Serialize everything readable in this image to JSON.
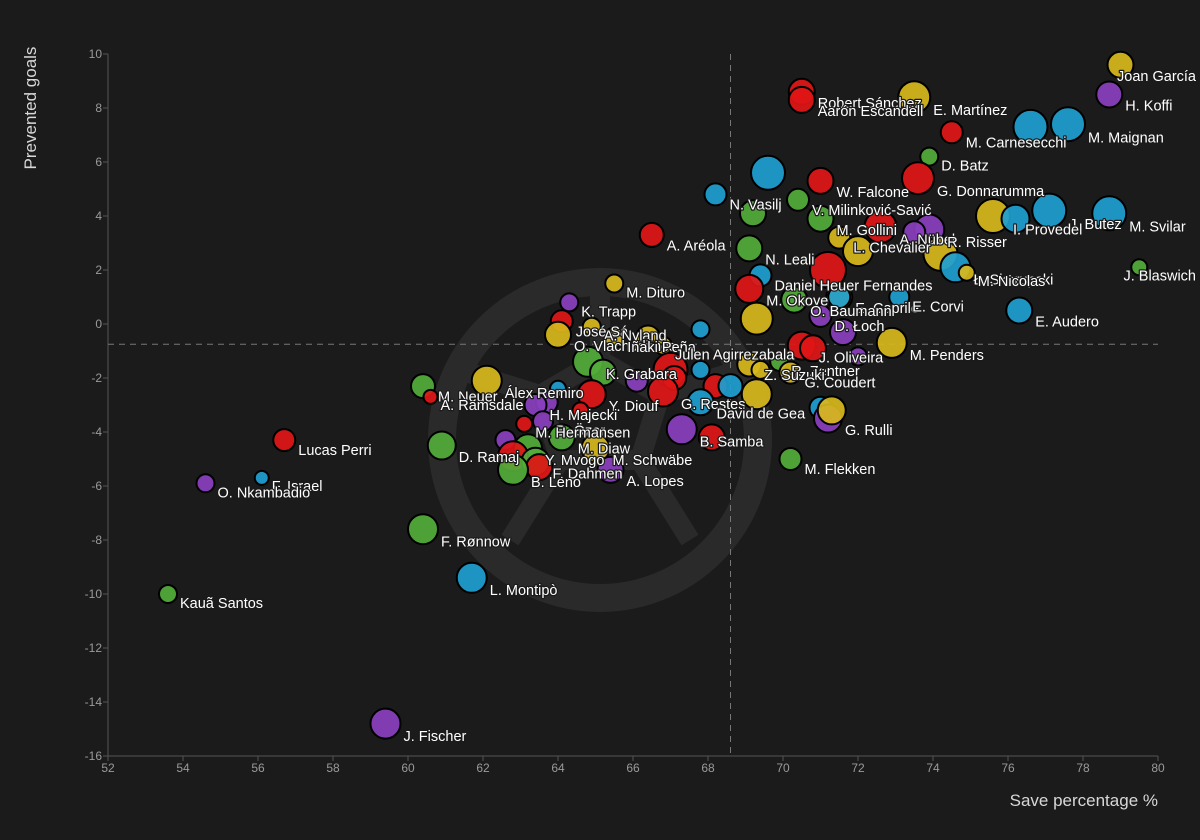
{
  "colors": {
    "background": "#1b1b1b",
    "yellow": "#d8b81c",
    "blue": "#1e9ed0",
    "purple": "#8a3fbe",
    "red": "#e01616",
    "green": "#52ac3a"
  },
  "chart_data": {
    "type": "scatter",
    "title": "",
    "xlabel": "Save percentage %",
    "ylabel": "Prevented goals",
    "xlim": [
      52,
      80
    ],
    "ylim": [
      -16,
      10
    ],
    "xticks": [
      52,
      54,
      56,
      58,
      60,
      62,
      64,
      66,
      68,
      70,
      72,
      74,
      76,
      78,
      80
    ],
    "yticks": [
      -16,
      -14,
      -12,
      -10,
      -8,
      -6,
      -4,
      -2,
      0,
      2,
      4,
      6,
      8,
      10
    ],
    "reference_lines": {
      "x": 68.6,
      "y": -0.75
    },
    "points": [
      {
        "name": "Joan García",
        "x": 79.0,
        "y": 9.6,
        "color": "yellow",
        "size": 13
      },
      {
        "name": "H. Koffi",
        "x": 78.7,
        "y": 8.5,
        "color": "purple",
        "size": 13
      },
      {
        "name": "Robert Sánchez",
        "x": 70.5,
        "y": 8.6,
        "color": "red",
        "size": 13
      },
      {
        "name": "Aarón Escandell",
        "x": 70.5,
        "y": 8.3,
        "color": "red",
        "size": 13
      },
      {
        "name": "E. Martínez",
        "x": 73.5,
        "y": 8.4,
        "color": "yellow",
        "size": 16
      },
      {
        "name": "M. Carnesecchi",
        "x": 74.5,
        "y": 7.1,
        "color": "red",
        "size": 11
      },
      {
        "name": "M. Maignan",
        "x": 77.6,
        "y": 7.4,
        "color": "blue",
        "size": 17
      },
      {
        "name": "",
        "x": 76.6,
        "y": 7.3,
        "color": "blue",
        "size": 17
      },
      {
        "name": "D. Batz",
        "x": 73.9,
        "y": 6.2,
        "color": "green",
        "size": 9
      },
      {
        "name": "G. Donnarumma",
        "x": 73.6,
        "y": 5.4,
        "color": "red",
        "size": 16
      },
      {
        "name": "",
        "x": 69.6,
        "y": 5.6,
        "color": "blue",
        "size": 17
      },
      {
        "name": "W. Falcone",
        "x": 71.0,
        "y": 5.3,
        "color": "red",
        "size": 13
      },
      {
        "name": "M. Svilar",
        "x": 78.7,
        "y": 4.1,
        "color": "blue",
        "size": 17
      },
      {
        "name": "J. Butez",
        "x": 77.1,
        "y": 4.2,
        "color": "blue",
        "size": 17
      },
      {
        "name": "I. Provedel",
        "x": 75.6,
        "y": 4.0,
        "color": "yellow",
        "size": 17
      },
      {
        "name": "",
        "x": 76.2,
        "y": 3.9,
        "color": "blue",
        "size": 14
      },
      {
        "name": "V. Milinković-Savić",
        "x": 70.4,
        "y": 4.6,
        "color": "green",
        "size": 11
      },
      {
        "name": "M. Gollini",
        "x": 71.0,
        "y": 3.9,
        "color": "green",
        "size": 13
      },
      {
        "name": "A. Nübel",
        "x": 72.6,
        "y": 3.6,
        "color": "red",
        "size": 16
      },
      {
        "name": "N. Vasilj",
        "x": 68.2,
        "y": 4.8,
        "color": "blue",
        "size": 11
      },
      {
        "name": "",
        "x": 69.2,
        "y": 4.1,
        "color": "green",
        "size": 13
      },
      {
        "name": "A. Aréola",
        "x": 66.5,
        "y": 3.3,
        "color": "red",
        "size": 12
      },
      {
        "name": "R. Risser",
        "x": 73.9,
        "y": 3.5,
        "color": "purple",
        "size": 15
      },
      {
        "name": "",
        "x": 73.5,
        "y": 3.4,
        "color": "purple",
        "size": 11
      },
      {
        "name": "L. Chevalier",
        "x": 71.5,
        "y": 3.2,
        "color": "yellow",
        "size": 11
      },
      {
        "name": "N. Leali",
        "x": 69.1,
        "y": 2.8,
        "color": "green",
        "size": 13
      },
      {
        "name": "",
        "x": 72.0,
        "y": 2.7,
        "color": "yellow",
        "size": 15
      },
      {
        "name": "",
        "x": 74.2,
        "y": 2.6,
        "color": "yellow",
        "size": 17
      },
      {
        "name": "Ł. Skorupski",
        "x": 74.6,
        "y": 2.1,
        "color": "blue",
        "size": 15
      },
      {
        "name": "M. Nicolas",
        "x": 74.9,
        "y": 1.9,
        "color": "yellow",
        "size": 8
      },
      {
        "name": "J. Blaswich",
        "x": 79.5,
        "y": 2.1,
        "color": "green",
        "size": 8
      },
      {
        "name": "Daniel Heuer Fernandes",
        "x": 69.4,
        "y": 1.8,
        "color": "blue",
        "size": 11
      },
      {
        "name": "",
        "x": 71.2,
        "y": 2.0,
        "color": "red",
        "size": 18
      },
      {
        "name": "M. Dituro",
        "x": 65.5,
        "y": 1.5,
        "color": "yellow",
        "size": 9
      },
      {
        "name": "M. Okoye",
        "x": 69.1,
        "y": 1.3,
        "color": "red",
        "size": 14
      },
      {
        "name": "E. Caprile",
        "x": 71.5,
        "y": 1.0,
        "color": "yellow",
        "size": 13
      },
      {
        "name": "",
        "x": 71.5,
        "y": 1.0,
        "color": "blue",
        "size": 11
      },
      {
        "name": "O. Baumann",
        "x": 70.3,
        "y": 0.9,
        "color": "green",
        "size": 13
      },
      {
        "name": "E. Corvi",
        "x": 73.1,
        "y": 1.0,
        "color": "blue",
        "size": 10
      },
      {
        "name": "K. Trapp",
        "x": 64.3,
        "y": 0.8,
        "color": "purple",
        "size": 9
      },
      {
        "name": "",
        "x": 69.3,
        "y": 0.2,
        "color": "yellow",
        "size": 16
      },
      {
        "name": "D. Łoch",
        "x": 71.0,
        "y": 0.3,
        "color": "purple",
        "size": 11
      },
      {
        "name": "E. Audero",
        "x": 76.3,
        "y": 0.5,
        "color": "blue",
        "size": 13
      },
      {
        "name": "José Sá",
        "x": 64.1,
        "y": 0.1,
        "color": "red",
        "size": 11
      },
      {
        "name": "A. Nyland",
        "x": 64.9,
        "y": -0.1,
        "color": "yellow",
        "size": 9
      },
      {
        "name": "O. Vlachodimos",
        "x": 64.0,
        "y": -0.4,
        "color": "yellow",
        "size": 13
      },
      {
        "name": "Iñaki Peña",
        "x": 65.5,
        "y": -0.5,
        "color": "yellow",
        "size": 10
      },
      {
        "name": "",
        "x": 67.8,
        "y": -0.2,
        "color": "blue",
        "size": 9
      },
      {
        "name": "",
        "x": 71.6,
        "y": -0.3,
        "color": "purple",
        "size": 13
      },
      {
        "name": "",
        "x": 66.4,
        "y": -0.5,
        "color": "yellow",
        "size": 12
      },
      {
        "name": "Julen Agirrezabala",
        "x": 66.8,
        "y": -0.8,
        "color": "yellow",
        "size": 9
      },
      {
        "name": "J. Oliveira",
        "x": 70.5,
        "y": -0.8,
        "color": "red",
        "size": 14
      },
      {
        "name": "M. Penders",
        "x": 72.9,
        "y": -0.7,
        "color": "yellow",
        "size": 15
      },
      {
        "name": "",
        "x": 70.8,
        "y": -0.9,
        "color": "red",
        "size": 13
      },
      {
        "name": "",
        "x": 72.0,
        "y": -1.2,
        "color": "purple",
        "size": 9
      },
      {
        "name": "K. Grabara",
        "x": 64.8,
        "y": -1.4,
        "color": "green",
        "size": 15
      },
      {
        "name": "",
        "x": 65.2,
        "y": -1.8,
        "color": "green",
        "size": 13
      },
      {
        "name": "R. Zentner",
        "x": 69.9,
        "y": -1.4,
        "color": "green",
        "size": 9
      },
      {
        "name": "Z. Suzuki",
        "x": 69.1,
        "y": -1.5,
        "color": "yellow",
        "size": 12
      },
      {
        "name": "",
        "x": 69.4,
        "y": -1.7,
        "color": "yellow",
        "size": 9
      },
      {
        "name": "",
        "x": 67.0,
        "y": -1.7,
        "color": "red",
        "size": 17
      },
      {
        "name": "",
        "x": 67.8,
        "y": -1.7,
        "color": "blue",
        "size": 9
      },
      {
        "name": "G. Coudert",
        "x": 70.2,
        "y": -1.8,
        "color": "yellow",
        "size": 11
      },
      {
        "name": "Álex Remiro",
        "x": 62.1,
        "y": -2.1,
        "color": "yellow",
        "size": 15
      },
      {
        "name": "",
        "x": 66.1,
        "y": -2.1,
        "color": "purple",
        "size": 11
      },
      {
        "name": "",
        "x": 67.1,
        "y": -2.0,
        "color": "red",
        "size": 12
      },
      {
        "name": "Y. Diouf",
        "x": 64.9,
        "y": -2.6,
        "color": "red",
        "size": 14
      },
      {
        "name": "",
        "x": 64.0,
        "y": -2.4,
        "color": "blue",
        "size": 8
      },
      {
        "name": "G. Restes",
        "x": 66.8,
        "y": -2.5,
        "color": "red",
        "size": 15
      },
      {
        "name": "",
        "x": 68.2,
        "y": -2.3,
        "color": "red",
        "size": 12
      },
      {
        "name": "",
        "x": 68.6,
        "y": -2.3,
        "color": "blue",
        "size": 12
      },
      {
        "name": "",
        "x": 69.3,
        "y": -2.6,
        "color": "yellow",
        "size": 15
      },
      {
        "name": "M. Neuer",
        "x": 60.4,
        "y": -2.3,
        "color": "green",
        "size": 12
      },
      {
        "name": "A. Ramsdale",
        "x": 60.6,
        "y": -2.7,
        "color": "red",
        "size": 7
      },
      {
        "name": "",
        "x": 63.7,
        "y": -2.9,
        "color": "purple",
        "size": 11
      },
      {
        "name": "David de Gea",
        "x": 67.8,
        "y": -2.9,
        "color": "blue",
        "size": 13
      },
      {
        "name": "H. Majecki",
        "x": 63.4,
        "y": -3.0,
        "color": "purple",
        "size": 11
      },
      {
        "name": "",
        "x": 64.6,
        "y": -3.2,
        "color": "red",
        "size": 8
      },
      {
        "name": "B. Özer",
        "x": 63.6,
        "y": -3.6,
        "color": "purple",
        "size": 10
      },
      {
        "name": "",
        "x": 71.0,
        "y": -3.1,
        "color": "blue",
        "size": 11
      },
      {
        "name": "G. Rulli",
        "x": 71.2,
        "y": -3.5,
        "color": "purple",
        "size": 14
      },
      {
        "name": "",
        "x": 71.3,
        "y": -3.2,
        "color": "yellow",
        "size": 14
      },
      {
        "name": "M. Hermansen",
        "x": 63.1,
        "y": -3.7,
        "color": "red",
        "size": 8
      },
      {
        "name": "B. Samba",
        "x": 67.3,
        "y": -3.9,
        "color": "purple",
        "size": 15
      },
      {
        "name": "",
        "x": 68.1,
        "y": -4.2,
        "color": "red",
        "size": 13
      },
      {
        "name": "M. Diaw",
        "x": 64.1,
        "y": -4.2,
        "color": "green",
        "size": 13
      },
      {
        "name": "D. Ramaj",
        "x": 60.9,
        "y": -4.5,
        "color": "green",
        "size": 14
      },
      {
        "name": "",
        "x": 62.6,
        "y": -4.3,
        "color": "purple",
        "size": 10
      },
      {
        "name": "M. Schwäbe",
        "x": 65.0,
        "y": -4.6,
        "color": "yellow",
        "size": 14
      },
      {
        "name": "Y. Mvogo",
        "x": 63.2,
        "y": -4.6,
        "color": "green",
        "size": 14
      },
      {
        "name": "",
        "x": 62.8,
        "y": -4.9,
        "color": "red",
        "size": 15
      },
      {
        "name": "M. Flekken",
        "x": 70.2,
        "y": -5.0,
        "color": "green",
        "size": 11
      },
      {
        "name": "F. Dahmen",
        "x": 63.4,
        "y": -5.1,
        "color": "green",
        "size": 14
      },
      {
        "name": "",
        "x": 63.5,
        "y": -5.3,
        "color": "red",
        "size": 13
      },
      {
        "name": "A. Lopes",
        "x": 65.4,
        "y": -5.4,
        "color": "purple",
        "size": 13
      },
      {
        "name": "B. Leno",
        "x": 62.8,
        "y": -5.4,
        "color": "green",
        "size": 15
      },
      {
        "name": "Lucas Perri",
        "x": 56.7,
        "y": -4.3,
        "color": "red",
        "size": 11
      },
      {
        "name": "F. Israel",
        "x": 56.1,
        "y": -5.7,
        "color": "blue",
        "size": 7
      },
      {
        "name": "O. Nkambadio",
        "x": 54.6,
        "y": -5.9,
        "color": "purple",
        "size": 9
      },
      {
        "name": "F. Rønnow",
        "x": 60.4,
        "y": -7.6,
        "color": "green",
        "size": 15
      },
      {
        "name": "L. Montipò",
        "x": 61.7,
        "y": -9.4,
        "color": "blue",
        "size": 15
      },
      {
        "name": "Kauã Santos",
        "x": 53.6,
        "y": -10.0,
        "color": "green",
        "size": 9
      },
      {
        "name": "J. Fischer",
        "x": 59.4,
        "y": -14.8,
        "color": "purple",
        "size": 15
      }
    ]
  }
}
